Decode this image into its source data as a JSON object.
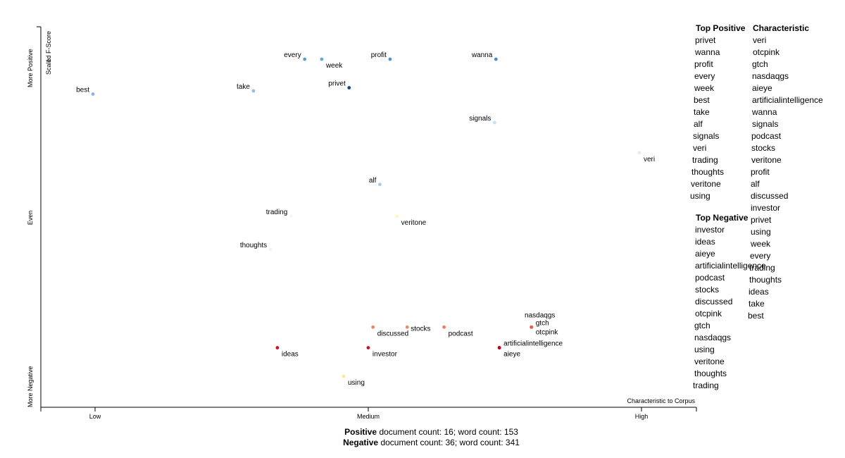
{
  "chart_data": {
    "type": "scatter",
    "x_axis": {
      "ticks": [
        {
          "value": 0.1,
          "label": "Low"
        },
        {
          "value": 0.5,
          "label": "Medium"
        },
        {
          "value": 0.9,
          "label": "High"
        }
      ],
      "corner_label": "Characteristic to Corpus",
      "range": [
        0,
        1
      ]
    },
    "y_axis": {
      "label": "Scaled F-Score",
      "tick_value": "1",
      "categories": [
        "More Positive",
        "Even",
        "More Negative"
      ],
      "range": [
        -1.2,
        1.2
      ]
    },
    "points": [
      {
        "term": "every",
        "x": 0.41,
        "y": 1.0,
        "color": "#5b9bd5",
        "label_pos": "left"
      },
      {
        "term": "week",
        "x": 0.435,
        "y": 1.0,
        "color": "#6aa3d6",
        "label_pos": "below-right"
      },
      {
        "term": "profit",
        "x": 0.535,
        "y": 1.0,
        "color": "#4e92cf",
        "label_pos": "left"
      },
      {
        "term": "wanna",
        "x": 0.69,
        "y": 1.0,
        "color": "#4b89c8",
        "label_pos": "left"
      },
      {
        "term": "best",
        "x": 0.1,
        "y": 0.78,
        "color": "#89b6df",
        "label_pos": "left"
      },
      {
        "term": "take",
        "x": 0.335,
        "y": 0.8,
        "color": "#93bde2",
        "label_pos": "left"
      },
      {
        "term": "privet",
        "x": 0.475,
        "y": 0.82,
        "color": "#1f3f8a",
        "label_pos": "left"
      },
      {
        "term": "signals",
        "x": 0.688,
        "y": 0.6,
        "color": "#c8dff0",
        "label_pos": "left"
      },
      {
        "term": "veri",
        "x": 0.9,
        "y": 0.41,
        "color": "#deebf6",
        "label_pos": "below-right"
      },
      {
        "term": "alf",
        "x": 0.52,
        "y": 0.21,
        "color": "#a9cbe7",
        "label_pos": "left"
      },
      {
        "term": "trading",
        "x": 0.39,
        "y": 0.01,
        "color": "#f4f6f8",
        "label_pos": "left"
      },
      {
        "term": "veritone",
        "x": 0.545,
        "y": 0.01,
        "color": "#fff4c4",
        "label_pos": "below-right"
      },
      {
        "term": "thoughts",
        "x": 0.36,
        "y": -0.2,
        "color": "#faf2ea",
        "label_pos": "left"
      },
      {
        "term": "discussed",
        "x": 0.51,
        "y": -0.69,
        "color": "#f0806b",
        "label_pos": "below-right"
      },
      {
        "term": "stocks",
        "x": 0.56,
        "y": -0.69,
        "color": "#ef8870",
        "label_pos": "right"
      },
      {
        "term": "podcast",
        "x": 0.614,
        "y": -0.69,
        "color": "#ee7a66",
        "label_pos": "below-right"
      },
      {
        "term": "nasdaqgs",
        "x": 0.742,
        "y": -0.69,
        "color": "#e25e4e",
        "label_pos": "above"
      },
      {
        "term": "gtch",
        "x": 0.742,
        "y": -0.69,
        "color": "#e25e4e",
        "label_pos": "upper-right"
      },
      {
        "term": "otcpink",
        "x": 0.742,
        "y": -0.69,
        "color": "#e25e4e",
        "label_pos": "lower-right"
      },
      {
        "term": "ideas",
        "x": 0.37,
        "y": -0.82,
        "color": "#c9112b",
        "label_pos": "below-right"
      },
      {
        "term": "investor",
        "x": 0.503,
        "y": -0.82,
        "color": "#c9112b",
        "label_pos": "below-right"
      },
      {
        "term": "artificialintelligence",
        "x": 0.695,
        "y": -0.82,
        "color": "#c00024",
        "label_pos": "upper-right"
      },
      {
        "term": "aieye",
        "x": 0.695,
        "y": -0.82,
        "color": "#c00024",
        "label_pos": "below-right"
      },
      {
        "term": "using",
        "x": 0.467,
        "y": -1.0,
        "color": "#fde89b",
        "label_pos": "below-right"
      }
    ]
  },
  "top_positive": {
    "title": "Top Positive",
    "terms": [
      "privet",
      "wanna",
      "profit",
      "every",
      "week",
      "best",
      "take",
      "alf",
      "signals",
      "veri",
      "trading",
      "thoughts",
      "veritone",
      "using"
    ]
  },
  "top_negative": {
    "title": "Top Negative",
    "terms": [
      "investor",
      "ideas",
      "aieye",
      "artificialintelligence",
      "podcast",
      "stocks",
      "discussed",
      "otcpink",
      "gtch",
      "nasdaqgs",
      "using",
      "veritone",
      "thoughts",
      "trading"
    ]
  },
  "characteristic": {
    "title": "Characteristic",
    "terms": [
      "veri",
      "otcpink",
      "gtch",
      "nasdaqgs",
      "aieye",
      "artificialintelligence",
      "wanna",
      "signals",
      "podcast",
      "stocks",
      "veritone",
      "profit",
      "alf",
      "discussed",
      "investor",
      "privet",
      "using",
      "week",
      "every",
      "trading",
      "thoughts",
      "ideas",
      "take",
      "best"
    ]
  },
  "footer": {
    "positive_label": "Positive",
    "positive_text": "document count: 16; word count: 153",
    "negative_label": "Negative",
    "negative_text": "document count: 36; word count: 341"
  }
}
